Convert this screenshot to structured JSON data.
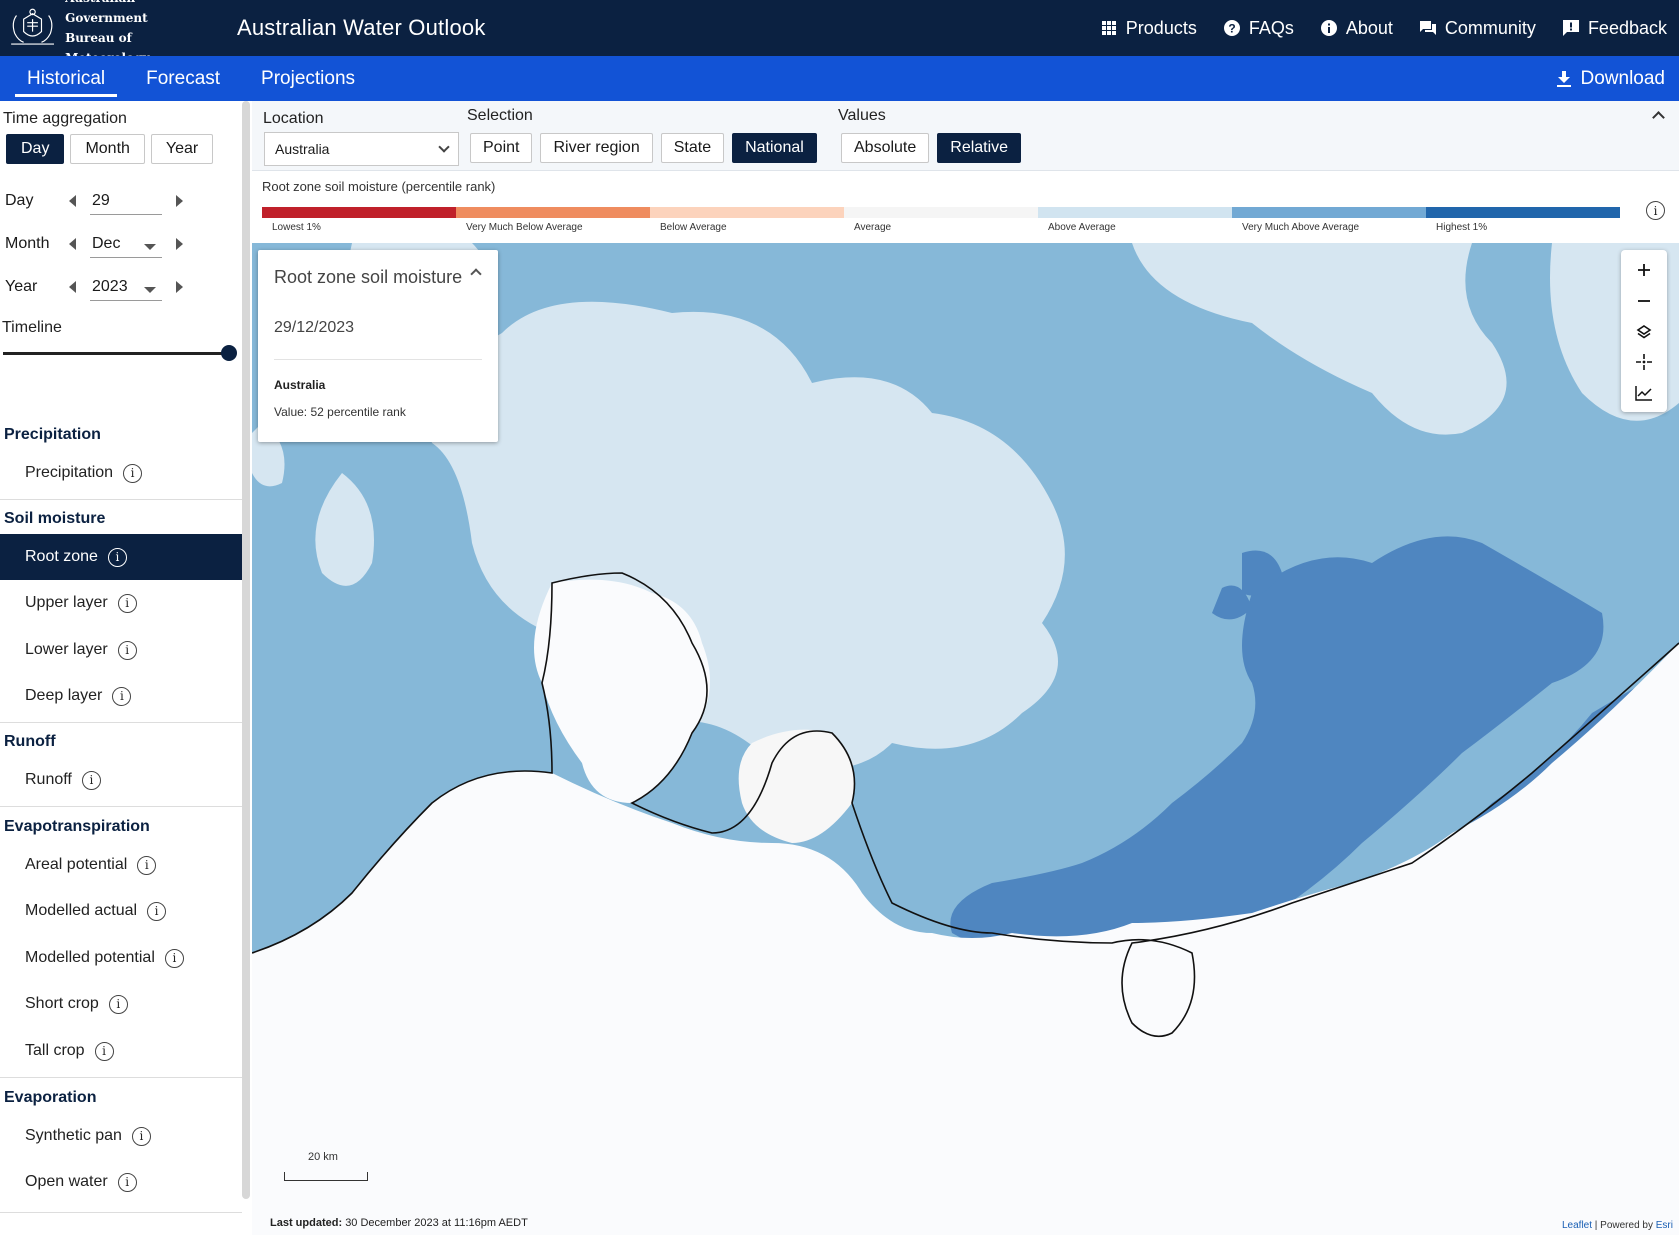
{
  "header": {
    "gov_line1": "Australian Government",
    "gov_line2": "Bureau of Meteorology",
    "app_title": "Australian Water Outlook",
    "nav": [
      {
        "label": "Products",
        "icon": "grid-icon"
      },
      {
        "label": "FAQs",
        "icon": "question-icon"
      },
      {
        "label": "About",
        "icon": "info-icon"
      },
      {
        "label": "Community",
        "icon": "chat-icon"
      },
      {
        "label": "Feedback",
        "icon": "feedback-icon"
      }
    ]
  },
  "tabs": {
    "items": [
      "Historical",
      "Forecast",
      "Projections"
    ],
    "active": "Historical",
    "download_label": "Download"
  },
  "sidebar": {
    "time_aggregation_label": "Time aggregation",
    "aggregation": [
      "Day",
      "Month",
      "Year"
    ],
    "aggregation_active": "Day",
    "day_label": "Day",
    "day_value": "29",
    "month_label": "Month",
    "month_value": "Dec",
    "year_label": "Year",
    "year_value": "2023",
    "timeline_label": "Timeline",
    "timeline_position": 1.0,
    "groups": [
      {
        "title": "Precipitation",
        "items": [
          "Precipitation"
        ]
      },
      {
        "title": "Soil moisture",
        "items": [
          "Root zone",
          "Upper layer",
          "Lower layer",
          "Deep layer"
        ]
      },
      {
        "title": "Runoff",
        "items": [
          "Runoff"
        ]
      },
      {
        "title": "Evapotranspiration",
        "items": [
          "Areal potential",
          "Modelled actual",
          "Modelled potential",
          "Short crop",
          "Tall crop"
        ]
      },
      {
        "title": "Evaporation",
        "items": [
          "Synthetic pan",
          "Open water"
        ]
      }
    ],
    "active_item": "Root zone"
  },
  "controls": {
    "location_label": "Location",
    "location_value": "Australia",
    "selection_label": "Selection",
    "selection": [
      "Point",
      "River region",
      "State",
      "National"
    ],
    "selection_active": "National",
    "values_label": "Values",
    "values": [
      "Absolute",
      "Relative"
    ],
    "values_active": "Relative"
  },
  "legend": {
    "title": "Root zone soil moisture (percentile rank)",
    "classes": [
      {
        "label": "Lowest 1%",
        "color": "#c0202a"
      },
      {
        "label": "Very Much Below Average",
        "color": "#ef8c5f"
      },
      {
        "label": "Below Average",
        "color": "#fcd3bc"
      },
      {
        "label": "Average",
        "color": "#f5f5f5"
      },
      {
        "label": "Above Average",
        "color": "#d1e4f0"
      },
      {
        "label": "Very Much Above Average",
        "color": "#72a9d4"
      },
      {
        "label": "Highest 1%",
        "color": "#2166ac"
      }
    ]
  },
  "popup": {
    "title": "Root zone soil moisture",
    "date": "29/12/2023",
    "location": "Australia",
    "value": "Value: 52 percentile rank"
  },
  "map": {
    "scale_label": "20 km",
    "last_updated_label": "Last updated:",
    "last_updated_value": "30 December 2023 at 11:16pm AEDT",
    "attribution_leaflet": "Leaflet",
    "attribution_sep": " | Powered by ",
    "attribution_esri": "Esri",
    "colors": {
      "ocean": "#fafbfd",
      "above": "#86b8d8",
      "high": "#4f86c0",
      "light": "#d6e6f1",
      "avg": "#f7f7f7"
    }
  }
}
